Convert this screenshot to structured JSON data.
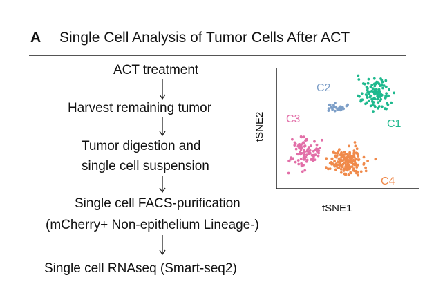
{
  "panel": {
    "letter": "A",
    "title": "Single Cell Analysis of Tumor Cells After ACT"
  },
  "workflow": {
    "steps": [
      "ACT treatment",
      "Harvest remaining tumor",
      "Tumor digestion and",
      "single cell suspension",
      "Single cell FACS-purification",
      "(mCherry+ Non-epithelium Lineage-)",
      "Single cell RNAseq (Smart-seq2)"
    ]
  },
  "chart_data": {
    "type": "scatter",
    "xlabel": "tSNE1",
    "ylabel": "tSNE2",
    "series": [
      {
        "name": "C1",
        "color": "#1fb98e"
      },
      {
        "name": "C2",
        "color": "#7d9fc8"
      },
      {
        "name": "C3",
        "color": "#e26fa8"
      },
      {
        "name": "C4",
        "color": "#f08a4b"
      }
    ]
  }
}
